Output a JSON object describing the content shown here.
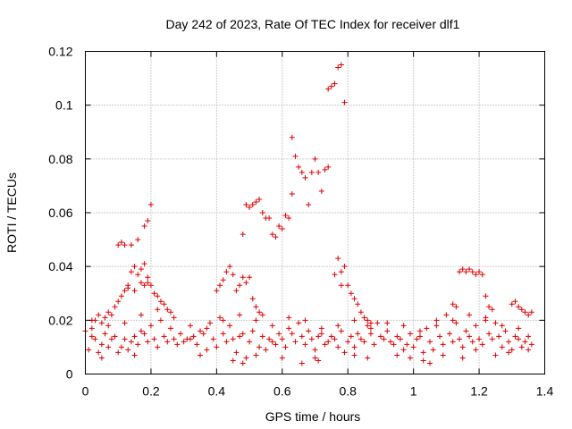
{
  "chart_data": {
    "type": "scatter",
    "title": "Day 242 of 2023, Rate Of TEC Index for receiver dlf1",
    "xlabel": "GPS time / hours",
    "ylabel": "ROTI / TECUs",
    "xlim": [
      0,
      1.4
    ],
    "ylim": [
      0,
      0.12
    ],
    "xticks": [
      0,
      0.2,
      0.4,
      0.6,
      0.8,
      1,
      1.2,
      1.4
    ],
    "xtick_labels": [
      "0",
      "0.2",
      "0.4",
      "0.6",
      "0.8",
      "1",
      "1.2",
      "1.4"
    ],
    "yticks": [
      0,
      0.02,
      0.04,
      0.06,
      0.08,
      0.1,
      0.12
    ],
    "ytick_labels": [
      "0",
      "0.02",
      "0.04",
      "0.06",
      "0.08",
      "0.1",
      "0.12"
    ],
    "grid": true,
    "marker": "+",
    "color": "#e00000",
    "series": [
      {
        "name": "roti",
        "points": [
          [
            0.02,
            0.017
          ],
          [
            0.03,
            0.02
          ],
          [
            0.04,
            0.022
          ],
          [
            0.05,
            0.019
          ],
          [
            0.06,
            0.021
          ],
          [
            0.07,
            0.023
          ],
          [
            0.08,
            0.022
          ],
          [
            0.09,
            0.025
          ],
          [
            0.1,
            0.027
          ],
          [
            0.11,
            0.029
          ],
          [
            0.12,
            0.031
          ],
          [
            0.13,
            0.033
          ],
          [
            0.14,
            0.038
          ],
          [
            0.15,
            0.04
          ],
          [
            0.16,
            0.037
          ],
          [
            0.17,
            0.039
          ],
          [
            0.18,
            0.041
          ],
          [
            0.19,
            0.036
          ],
          [
            0.2,
            0.033
          ],
          [
            0.21,
            0.03
          ],
          [
            0.22,
            0.029
          ],
          [
            0.23,
            0.027
          ],
          [
            0.24,
            0.026
          ],
          [
            0.25,
            0.024
          ],
          [
            0.26,
            0.023
          ],
          [
            0.1,
            0.048
          ],
          [
            0.11,
            0.049
          ],
          [
            0.12,
            0.048
          ],
          [
            0.14,
            0.048
          ],
          [
            0.16,
            0.05
          ],
          [
            0.18,
            0.055
          ],
          [
            0.19,
            0.057
          ],
          [
            0.2,
            0.063
          ],
          [
            0.13,
            0.032
          ],
          [
            0.15,
            0.031
          ],
          [
            0.17,
            0.034
          ],
          [
            0.18,
            0.033
          ],
          [
            0.19,
            0.034
          ],
          [
            0.4,
            0.031
          ],
          [
            0.41,
            0.033
          ],
          [
            0.42,
            0.035
          ],
          [
            0.43,
            0.038
          ],
          [
            0.44,
            0.04
          ],
          [
            0.45,
            0.037
          ],
          [
            0.46,
            0.031
          ],
          [
            0.47,
            0.033
          ],
          [
            0.48,
            0.036
          ],
          [
            0.49,
            0.034
          ],
          [
            0.5,
            0.036
          ],
          [
            0.51,
            0.028
          ],
          [
            0.52,
            0.025
          ],
          [
            0.53,
            0.023
          ],
          [
            0.54,
            0.022
          ],
          [
            0.48,
            0.052
          ],
          [
            0.49,
            0.063
          ],
          [
            0.5,
            0.062
          ],
          [
            0.51,
            0.063
          ],
          [
            0.52,
            0.064
          ],
          [
            0.53,
            0.065
          ],
          [
            0.54,
            0.06
          ],
          [
            0.55,
            0.058
          ],
          [
            0.56,
            0.058
          ],
          [
            0.57,
            0.052
          ],
          [
            0.58,
            0.051
          ],
          [
            0.59,
            0.055
          ],
          [
            0.6,
            0.054
          ],
          [
            0.61,
            0.059
          ],
          [
            0.62,
            0.058
          ],
          [
            0.63,
            0.067
          ],
          [
            0.63,
            0.088
          ],
          [
            0.64,
            0.081
          ],
          [
            0.65,
            0.077
          ],
          [
            0.66,
            0.075
          ],
          [
            0.67,
            0.073
          ],
          [
            0.68,
            0.063
          ],
          [
            0.69,
            0.075
          ],
          [
            0.7,
            0.08
          ],
          [
            0.71,
            0.075
          ],
          [
            0.72,
            0.068
          ],
          [
            0.73,
            0.076
          ],
          [
            0.74,
            0.077
          ],
          [
            0.74,
            0.106
          ],
          [
            0.75,
            0.107
          ],
          [
            0.76,
            0.108
          ],
          [
            0.77,
            0.114
          ],
          [
            0.78,
            0.115
          ],
          [
            0.79,
            0.101
          ],
          [
            0.76,
            0.037
          ],
          [
            0.77,
            0.043
          ],
          [
            0.78,
            0.038
          ],
          [
            0.79,
            0.04
          ],
          [
            0.78,
            0.033
          ],
          [
            0.8,
            0.033
          ],
          [
            0.81,
            0.03
          ],
          [
            0.82,
            0.028
          ],
          [
            0.83,
            0.026
          ],
          [
            0.84,
            0.023
          ],
          [
            0.85,
            0.021
          ],
          [
            0.86,
            0.02
          ],
          [
            0.87,
            0.019
          ],
          [
            1.12,
            0.026
          ],
          [
            1.13,
            0.025
          ],
          [
            1.14,
            0.038
          ],
          [
            1.15,
            0.039
          ],
          [
            1.16,
            0.038
          ],
          [
            1.17,
            0.039
          ],
          [
            1.18,
            0.038
          ],
          [
            1.19,
            0.037
          ],
          [
            1.2,
            0.038
          ],
          [
            1.21,
            0.037
          ],
          [
            1.22,
            0.029
          ],
          [
            1.23,
            0.025
          ],
          [
            1.24,
            0.024
          ],
          [
            1.3,
            0.026
          ],
          [
            1.31,
            0.027
          ],
          [
            1.32,
            0.025
          ],
          [
            1.33,
            0.024
          ],
          [
            1.34,
            0.023
          ],
          [
            1.35,
            0.022
          ],
          [
            1.36,
            0.023
          ],
          [
            0.0,
            0.016
          ],
          [
            0.02,
            0.014
          ],
          [
            0.05,
            0.011
          ],
          [
            0.08,
            0.013
          ],
          [
            0.11,
            0.01
          ],
          [
            0.14,
            0.012
          ],
          [
            0.17,
            0.016
          ],
          [
            0.2,
            0.018
          ],
          [
            0.23,
            0.02
          ],
          [
            0.26,
            0.017
          ],
          [
            0.29,
            0.015
          ],
          [
            0.32,
            0.013
          ],
          [
            0.35,
            0.016
          ],
          [
            0.38,
            0.019
          ],
          [
            0.41,
            0.021
          ],
          [
            0.44,
            0.018
          ],
          [
            0.47,
            0.014
          ],
          [
            0.5,
            0.012
          ],
          [
            0.53,
            0.01
          ],
          [
            0.56,
            0.013
          ],
          [
            0.59,
            0.015
          ],
          [
            0.62,
            0.017
          ],
          [
            0.65,
            0.019
          ],
          [
            0.68,
            0.016
          ],
          [
            0.71,
            0.014
          ],
          [
            0.74,
            0.012
          ],
          [
            0.77,
            0.01
          ],
          [
            0.8,
            0.012
          ],
          [
            0.83,
            0.015
          ],
          [
            0.86,
            0.018
          ],
          [
            0.89,
            0.019
          ],
          [
            0.92,
            0.016
          ],
          [
            0.95,
            0.014
          ],
          [
            0.98,
            0.011
          ],
          [
            1.01,
            0.013
          ],
          [
            1.04,
            0.017
          ],
          [
            1.07,
            0.02
          ],
          [
            1.1,
            0.022
          ],
          [
            1.13,
            0.019
          ],
          [
            1.16,
            0.016
          ],
          [
            1.19,
            0.018
          ],
          [
            1.22,
            0.021
          ],
          [
            1.25,
            0.019
          ],
          [
            1.28,
            0.016
          ],
          [
            1.31,
            0.014
          ],
          [
            1.34,
            0.012
          ],
          [
            1.36,
            0.011
          ],
          [
            0.01,
            0.009
          ],
          [
            0.04,
            0.008
          ],
          [
            0.07,
            0.01
          ],
          [
            0.1,
            0.008
          ],
          [
            0.13,
            0.009
          ],
          [
            0.16,
            0.011
          ],
          [
            0.19,
            0.012
          ],
          [
            0.22,
            0.01
          ],
          [
            0.25,
            0.012
          ],
          [
            0.28,
            0.011
          ],
          [
            0.31,
            0.013
          ],
          [
            0.34,
            0.011
          ],
          [
            0.37,
            0.009
          ],
          [
            0.4,
            0.01
          ],
          [
            0.43,
            0.012
          ],
          [
            0.46,
            0.008
          ],
          [
            0.49,
            0.006
          ],
          [
            0.52,
            0.007
          ],
          [
            0.55,
            0.009
          ],
          [
            0.58,
            0.011
          ],
          [
            0.61,
            0.01
          ],
          [
            0.64,
            0.012
          ],
          [
            0.67,
            0.011
          ],
          [
            0.7,
            0.009
          ],
          [
            0.73,
            0.011
          ],
          [
            0.76,
            0.013
          ],
          [
            0.79,
            0.008
          ],
          [
            0.82,
            0.01
          ],
          [
            0.85,
            0.012
          ],
          [
            0.88,
            0.011
          ],
          [
            0.91,
            0.013
          ],
          [
            0.94,
            0.011
          ],
          [
            0.97,
            0.009
          ],
          [
            1.0,
            0.01
          ],
          [
            1.03,
            0.008
          ],
          [
            1.06,
            0.009
          ],
          [
            1.09,
            0.011
          ],
          [
            1.12,
            0.012
          ],
          [
            1.15,
            0.01
          ],
          [
            1.18,
            0.012
          ],
          [
            1.21,
            0.011
          ],
          [
            1.24,
            0.013
          ],
          [
            1.27,
            0.01
          ],
          [
            1.3,
            0.009
          ],
          [
            1.33,
            0.01
          ],
          [
            1.35,
            0.009
          ],
          [
            0.03,
            0.013
          ],
          [
            0.06,
            0.015
          ],
          [
            0.09,
            0.014
          ],
          [
            0.12,
            0.013
          ],
          [
            0.15,
            0.014
          ],
          [
            0.18,
            0.015
          ],
          [
            0.21,
            0.013
          ],
          [
            0.24,
            0.014
          ],
          [
            0.27,
            0.013
          ],
          [
            0.3,
            0.012
          ],
          [
            0.33,
            0.014
          ],
          [
            0.36,
            0.015
          ],
          [
            0.39,
            0.013
          ],
          [
            0.42,
            0.015
          ],
          [
            0.45,
            0.013
          ],
          [
            0.48,
            0.015
          ],
          [
            0.51,
            0.016
          ],
          [
            0.54,
            0.014
          ],
          [
            0.57,
            0.012
          ],
          [
            0.6,
            0.013
          ],
          [
            0.63,
            0.015
          ],
          [
            0.66,
            0.014
          ],
          [
            0.69,
            0.013
          ],
          [
            0.72,
            0.015
          ],
          [
            0.75,
            0.014
          ],
          [
            0.78,
            0.016
          ],
          [
            0.81,
            0.014
          ],
          [
            0.84,
            0.013
          ],
          [
            0.87,
            0.015
          ],
          [
            0.9,
            0.014
          ],
          [
            0.93,
            0.012
          ],
          [
            0.96,
            0.013
          ],
          [
            0.99,
            0.015
          ],
          [
            1.02,
            0.014
          ],
          [
            1.05,
            0.012
          ],
          [
            1.08,
            0.014
          ],
          [
            1.11,
            0.015
          ],
          [
            1.14,
            0.013
          ],
          [
            1.17,
            0.014
          ],
          [
            1.2,
            0.013
          ],
          [
            1.23,
            0.015
          ],
          [
            1.26,
            0.014
          ],
          [
            1.29,
            0.012
          ],
          [
            1.32,
            0.013
          ],
          [
            1.35,
            0.014
          ],
          [
            0.02,
            0.02
          ],
          [
            0.07,
            0.018
          ],
          [
            0.12,
            0.019
          ],
          [
            0.17,
            0.022
          ],
          [
            0.22,
            0.024
          ],
          [
            0.27,
            0.021
          ],
          [
            0.32,
            0.018
          ],
          [
            0.37,
            0.017
          ],
          [
            0.42,
            0.02
          ],
          [
            0.47,
            0.022
          ],
          [
            0.52,
            0.02
          ],
          [
            0.57,
            0.018
          ],
          [
            0.62,
            0.021
          ],
          [
            0.67,
            0.02
          ],
          [
            0.72,
            0.017
          ],
          [
            0.77,
            0.018
          ],
          [
            0.82,
            0.02
          ],
          [
            0.87,
            0.017
          ],
          [
            0.92,
            0.019
          ],
          [
            0.97,
            0.018
          ],
          [
            1.02,
            0.016
          ],
          [
            1.07,
            0.018
          ],
          [
            1.12,
            0.02
          ],
          [
            1.17,
            0.022
          ],
          [
            1.22,
            0.02
          ],
          [
            1.27,
            0.018
          ],
          [
            1.32,
            0.017
          ],
          [
            0.05,
            0.006
          ],
          [
            0.15,
            0.007
          ],
          [
            0.35,
            0.007
          ],
          [
            0.45,
            0.005
          ],
          [
            0.48,
            0.004
          ],
          [
            0.6,
            0.006
          ],
          [
            0.7,
            0.006
          ],
          [
            0.82,
            0.007
          ],
          [
            0.95,
            0.007
          ],
          [
            1.03,
            0.005
          ],
          [
            1.05,
            0.004
          ],
          [
            1.15,
            0.006
          ],
          [
            1.25,
            0.007
          ],
          [
            0.66,
            0.004
          ],
          [
            0.71,
            0.005
          ],
          [
            0.86,
            0.006
          ],
          [
            0.99,
            0.006
          ],
          [
            1.09,
            0.007
          ],
          [
            1.19,
            0.009
          ],
          [
            1.29,
            0.008
          ]
        ]
      }
    ]
  }
}
